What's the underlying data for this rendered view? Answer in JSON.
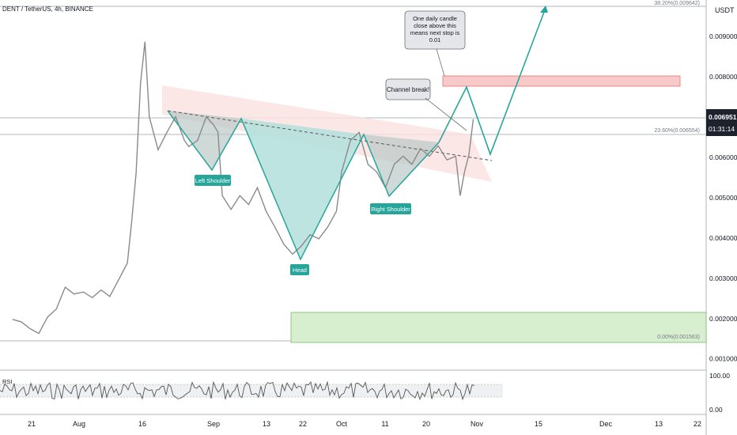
{
  "header": {
    "title": "DENT / TetherUS, 4h, BINANCE",
    "currency": "USDT"
  },
  "price_tag": {
    "price": "0.006951",
    "countdown": "01:31:14"
  },
  "fib_labels": {
    "top": "38.20%(0.009642)",
    "mid": "23.60%(0.006554)",
    "bottom": "0.00%(0.001563)"
  },
  "callouts": {
    "channel_break": "Channel break!",
    "daily_close": "One daily candle close above this means next stop is 0.01"
  },
  "pattern_labels": {
    "left_shoulder": "Left Shoulder",
    "head": "Head",
    "right_shoulder": "Right Shoulder"
  },
  "rsi": {
    "label": "RSI",
    "ticks": [
      "100.00",
      "0.00"
    ]
  },
  "colors": {
    "price_line": "#8a8a8a",
    "pattern_green": "#26a69a",
    "teal_fill": "#b2dfdb",
    "red_fill": "#f8c9c9",
    "green_fill": "#d7efcf",
    "axis_text": "#131722"
  },
  "chart_data": {
    "type": "line",
    "title": "DENT / TetherUS, 4h, BINANCE",
    "y_ticks": [
      "0.009000",
      "0.008000",
      "0.006000",
      "0.005000",
      "0.004000",
      "0.003000",
      "0.002000",
      "0.001000"
    ],
    "x_ticks": [
      "21",
      "Aug",
      "16",
      "Sep",
      "13",
      "22",
      "Oct",
      "11",
      "20",
      "Nov",
      "15",
      "Dec",
      "13",
      "22"
    ],
    "ylim": [
      0.00072,
      0.00975
    ],
    "series": [
      {
        "values": [
          [
            "Jul 17",
            0.00198
          ],
          [
            "Jul 19",
            0.00192
          ],
          [
            "Jul 21",
            0.00175
          ],
          [
            "Jul 23",
            0.00163
          ],
          [
            "Jul 25",
            0.00204
          ],
          [
            "Jul 27",
            0.00224
          ],
          [
            "Jul 29",
            0.00278
          ],
          [
            "Jul 31",
            0.00261
          ],
          [
            "Aug 2",
            0.00266
          ],
          [
            "Aug 4",
            0.00252
          ],
          [
            "Aug 6",
            0.00271
          ],
          [
            "Aug 8",
            0.00255
          ],
          [
            "Aug 10",
            0.00296
          ],
          [
            "Aug 12",
            0.00338
          ],
          [
            "Aug 13",
            0.00442
          ],
          [
            "Aug 14",
            0.00561
          ],
          [
            "Aug 15",
            0.00784
          ],
          [
            "Aug 16",
            0.00887
          ],
          [
            "Aug 17",
            0.00701
          ],
          [
            "Aug 19",
            0.00619
          ],
          [
            "Aug 21",
            0.00662
          ],
          [
            "Aug 23",
            0.00701
          ],
          [
            "Aug 25",
            0.00642
          ],
          [
            "Aug 26",
            0.00627
          ],
          [
            "Aug 28",
            0.00642
          ],
          [
            "Aug 30",
            0.00701
          ],
          [
            "Sep 1",
            0.00681
          ],
          [
            "Sep 2",
            0.00663
          ],
          [
            "Sep 3",
            0.00505
          ],
          [
            "Sep 5",
            0.00471
          ],
          [
            "Sep 7",
            0.00505
          ],
          [
            "Sep 9",
            0.00483
          ],
          [
            "Sep 11",
            0.00525
          ],
          [
            "Sep 13",
            0.00466
          ],
          [
            "Sep 15",
            0.00427
          ],
          [
            "Sep 17",
            0.00385
          ],
          [
            "Sep 19",
            0.0036
          ],
          [
            "Sep 21",
            0.0038
          ],
          [
            "Sep 23",
            0.00408
          ],
          [
            "Sep 25",
            0.00398
          ],
          [
            "Sep 27",
            0.00427
          ],
          [
            "Sep 29",
            0.00466
          ],
          [
            "Oct 1",
            0.00564
          ],
          [
            "Oct 3",
            0.00642
          ],
          [
            "Oct 5",
            0.00662
          ],
          [
            "Oct 7",
            0.00583
          ],
          [
            "Oct 9",
            0.00564
          ],
          [
            "Oct 11",
            0.00525
          ],
          [
            "Oct 13",
            0.00583
          ],
          [
            "Oct 15",
            0.00603
          ],
          [
            "Oct 17",
            0.00583
          ],
          [
            "Oct 19",
            0.00622
          ],
          [
            "Oct 21",
            0.00603
          ],
          [
            "Oct 23",
            0.00629
          ],
          [
            "Oct 25",
            0.00594
          ],
          [
            "Oct 27",
            0.00603
          ],
          [
            "Oct 28",
            0.00505
          ],
          [
            "Oct 29",
            0.00564
          ],
          [
            "Oct 30",
            0.00607
          ],
          [
            "Oct 31",
            0.00695
          ]
        ]
      },
      {
        "name": "projection",
        "values": [
          [
            "Oct 24",
            0.0063
          ],
          [
            "Oct 29",
            0.00758
          ],
          [
            "Nov 3",
            0.0061
          ],
          [
            "Nov 19",
            0.00963
          ]
        ]
      }
    ],
    "annotations": [
      "Left Shoulder",
      "Head",
      "Right Shoulder",
      "Channel break!",
      "One daily candle close above this means next stop is 0.01"
    ],
    "zones": [
      {
        "name": "resistance",
        "from": 0.00771,
        "to": 0.00796
      },
      {
        "name": "support",
        "from": 0.00158,
        "to": 0.00228
      }
    ],
    "rsi_range": [
      0,
      100
    ],
    "grid": false
  }
}
